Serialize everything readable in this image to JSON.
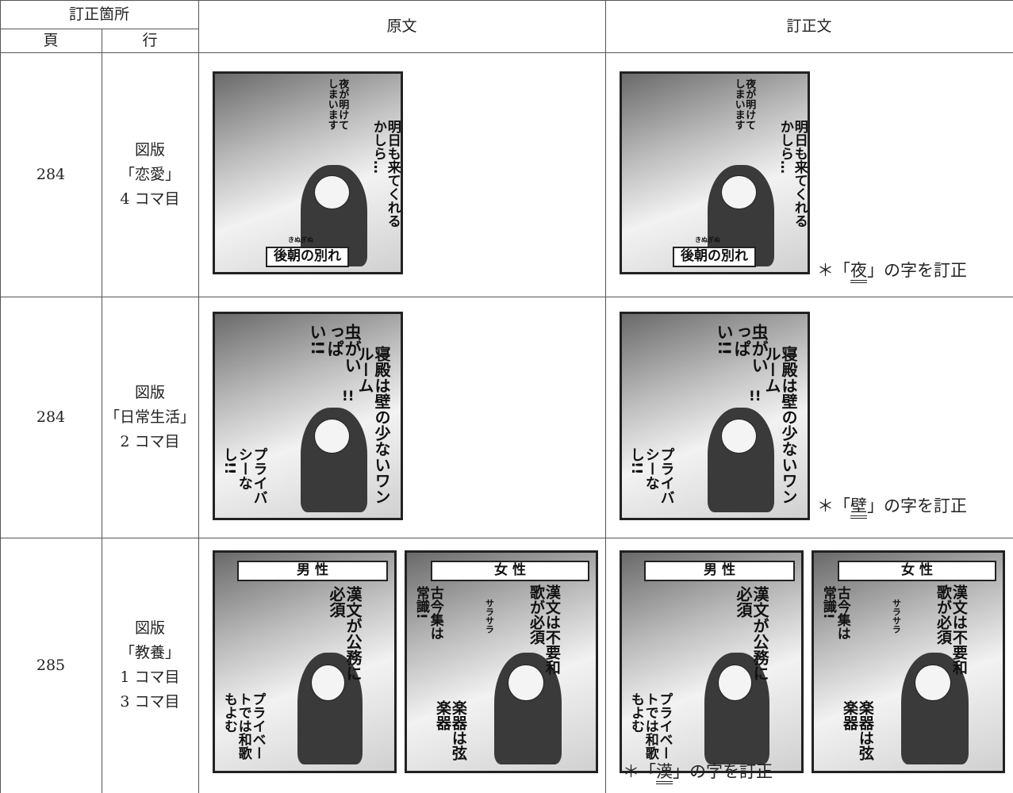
{
  "header": {
    "location": "訂正箇所",
    "page": "頁",
    "line": "行",
    "original": "原文",
    "corrected": "訂正文"
  },
  "rows": [
    {
      "page": "284",
      "location": [
        "図版",
        "「恋愛」",
        "4 コマ目"
      ],
      "note": {
        "prefix": "＊「",
        "char": "夜",
        "suffix": "」の字を訂正"
      }
    },
    {
      "page": "284",
      "location": [
        "図版",
        "「日常生活」",
        "2 コマ目"
      ],
      "note": {
        "prefix": "＊「",
        "char": "壁",
        "suffix": "」の字を訂正"
      }
    },
    {
      "page": "285",
      "location": [
        "図版",
        "「教養」",
        "1 コマ目",
        "3 コマ目"
      ],
      "note": {
        "prefix": "＊「",
        "char": "漢",
        "suffix": "」の字を訂正"
      }
    }
  ],
  "panels": [
    {
      "texts": [
        "夜が明けてしまいます",
        "明日も来てくれるかしら…",
        "きぬぎぬ",
        "後朝の別れ"
      ]
    },
    {
      "texts": [
        "虫がいっぱい!!",
        "寝殿は壁の少ないワンルーム",
        "プライバシーなし!!",
        "!!"
      ]
    },
    {
      "texts": [
        "男 性",
        "漢文が公務に必須",
        "プライベートでは和歌もよむ"
      ]
    },
    {
      "texts": [
        "女 性",
        "漢文は不要和歌が必須",
        "古今集は常識!",
        "サラサラ",
        "楽器は弦楽器"
      ]
    }
  ]
}
